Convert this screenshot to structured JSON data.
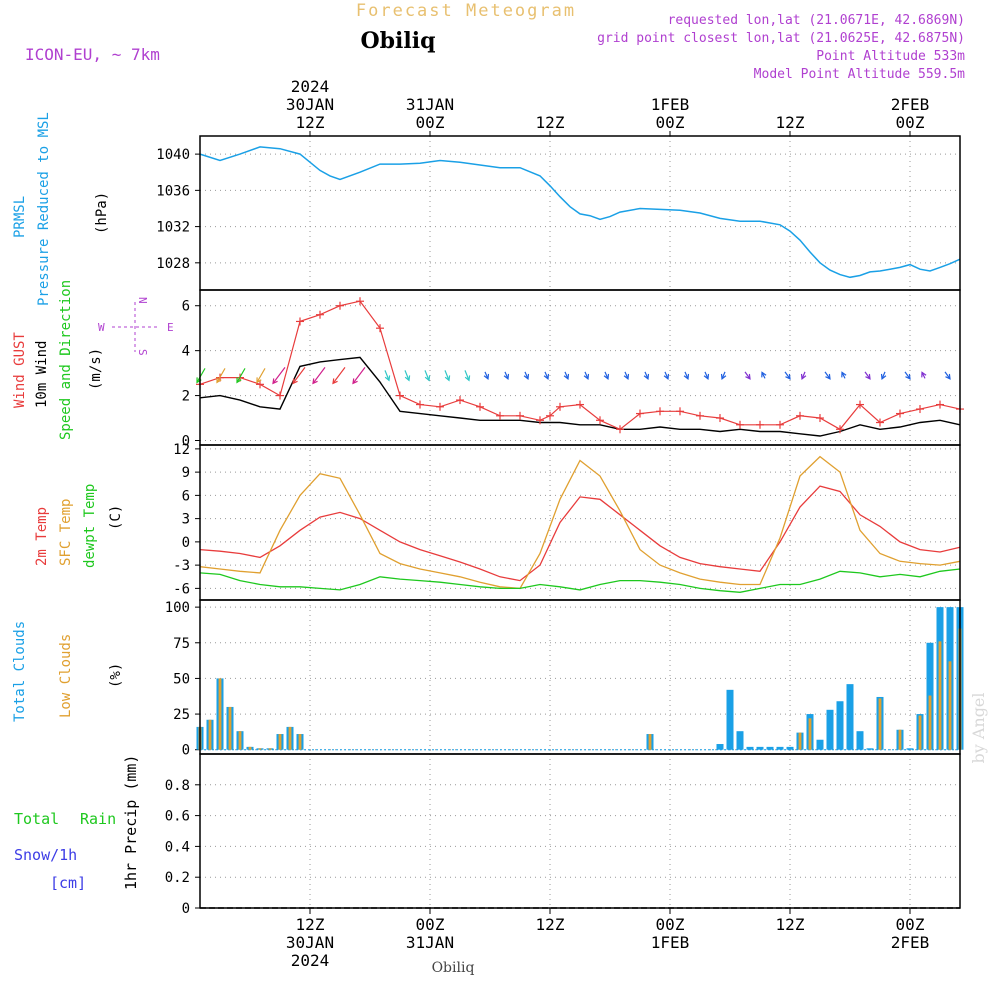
{
  "header": {
    "product_title": "Forecast Meteogram",
    "location": "Obiliq",
    "model": "ICON-EU, ~ 7km",
    "requested": "requested lon,lat (21.0671E, 42.6869N)",
    "grid_point": "grid point closest lon,lat (21.0625E, 42.6875N)",
    "point_altitude": "Point Altitude 533m",
    "model_altitude": "Model Point Altitude 559.5m"
  },
  "colors": {
    "pressure": "#1aa0e6",
    "gust": "#e83c3c",
    "wind": "#000000",
    "direction": "#1ec81e",
    "temp2m": "#e83c3c",
    "sfc": "#e0a030",
    "dewpt": "#1ec81e",
    "total_clouds": "#1aa0e6",
    "low_clouds": "#e0a030",
    "rain": "#1ec81e",
    "snow": "#3c3ce6",
    "header_purple": "#b040d0"
  },
  "time_axis": {
    "top": [
      {
        "x": 12,
        "lines": [
          "2024",
          "30JAN",
          "12Z"
        ]
      },
      {
        "x": 24,
        "lines": [
          "31JAN",
          "00Z"
        ]
      },
      {
        "x": 36,
        "lines": [
          "12Z"
        ]
      },
      {
        "x": 48,
        "lines": [
          "1FEB",
          "00Z"
        ]
      },
      {
        "x": 60,
        "lines": [
          "12Z"
        ]
      },
      {
        "x": 72,
        "lines": [
          "2FEB",
          "00Z"
        ]
      }
    ],
    "bottom": [
      {
        "x": 12,
        "lines": [
          "12Z",
          "30JAN",
          "2024"
        ]
      },
      {
        "x": 24,
        "lines": [
          "00Z",
          "31JAN"
        ]
      },
      {
        "x": 36,
        "lines": [
          "12Z"
        ]
      },
      {
        "x": 48,
        "lines": [
          "00Z",
          "1FEB"
        ]
      },
      {
        "x": 60,
        "lines": [
          "12Z"
        ]
      },
      {
        "x": 72,
        "lines": [
          "00Z",
          "2FEB"
        ]
      }
    ],
    "footer_location": "Obiliq",
    "xlim": [
      1,
      77
    ]
  },
  "panels": {
    "pressure": {
      "labels": [
        "PRMSL",
        "Pressure Reduced to MSL",
        "(hPa)"
      ]
    },
    "wind": {
      "labels": [
        "Wind GUST",
        "10m Wind",
        "Speed and Direction",
        "(m/s)"
      ],
      "compass": {
        "n": "N",
        "s": "S",
        "w": "W",
        "e": "E"
      }
    },
    "temp": {
      "labels": [
        "2m Temp",
        "SFC Temp",
        "dewpt Temp",
        "(C)"
      ]
    },
    "clouds": {
      "labels": [
        "Total Clouds",
        "Low Clouds",
        "(%)"
      ]
    },
    "precip": {
      "labels": [
        "Total",
        "Rain",
        "Snow/1h",
        "[cm]",
        "1hr Precip (mm)"
      ]
    }
  },
  "watermark": "by Angel",
  "chart_data": [
    {
      "type": "line",
      "name": "pressure",
      "ylim": [
        1025,
        1042
      ],
      "yticks": [
        1028,
        1032,
        1036,
        1040
      ],
      "grid": true,
      "x": [
        1,
        3,
        5,
        7,
        9,
        11,
        13,
        14,
        15,
        17,
        19,
        21,
        23,
        25,
        27,
        29,
        31,
        33,
        35,
        36,
        37,
        38,
        39,
        40,
        41,
        42,
        43,
        45,
        47,
        49,
        51,
        53,
        55,
        57,
        59,
        60,
        61,
        62,
        63,
        64,
        65,
        66,
        67,
        68,
        69,
        70,
        71,
        72,
        73,
        74,
        75,
        76,
        77
      ],
      "series": [
        {
          "name": "PRMSL",
          "values": [
            1040.0,
            1039.3,
            1040.0,
            1040.8,
            1040.6,
            1040.0,
            1038.2,
            1037.6,
            1037.2,
            1038.0,
            1038.9,
            1038.9,
            1039.0,
            1039.3,
            1039.1,
            1038.8,
            1038.5,
            1038.5,
            1037.6,
            1036.5,
            1035.3,
            1034.2,
            1033.4,
            1033.2,
            1032.8,
            1033.1,
            1033.6,
            1034.0,
            1033.9,
            1033.8,
            1033.5,
            1032.9,
            1032.6,
            1032.6,
            1032.2,
            1031.5,
            1030.5,
            1029.2,
            1028.0,
            1027.2,
            1026.7,
            1026.4,
            1026.6,
            1027.0,
            1027.1,
            1027.3,
            1027.5,
            1027.8,
            1027.3,
            1027.1,
            1027.5,
            1027.9,
            1028.4
          ]
        }
      ]
    },
    {
      "type": "line",
      "name": "wind",
      "ylim": [
        -0.2,
        6.7
      ],
      "yticks": [
        0,
        2,
        4,
        6
      ],
      "grid": true,
      "x": [
        1,
        3,
        5,
        7,
        9,
        11,
        13,
        15,
        17,
        19,
        21,
        23,
        25,
        27,
        29,
        31,
        33,
        35,
        36,
        37,
        39,
        41,
        43,
        45,
        47,
        49,
        51,
        53,
        55,
        57,
        59,
        61,
        63,
        65,
        67,
        69,
        71,
        73,
        75,
        77
      ],
      "series": [
        {
          "name": "Wind GUST",
          "values": [
            2.5,
            2.8,
            2.8,
            2.5,
            2.0,
            5.3,
            5.6,
            6.0,
            6.2,
            5.0,
            2.0,
            1.6,
            1.5,
            1.8,
            1.5,
            1.1,
            1.1,
            0.9,
            1.1,
            1.5,
            1.6,
            0.9,
            0.5,
            1.2,
            1.3,
            1.3,
            1.1,
            1.0,
            0.7,
            0.7,
            0.7,
            1.1,
            1.0,
            0.5,
            1.6,
            0.8,
            1.2,
            1.4,
            1.6,
            1.4
          ]
        },
        {
          "name": "10m Wind",
          "values": [
            1.9,
            2.0,
            1.8,
            1.5,
            1.4,
            3.3,
            3.5,
            3.6,
            3.7,
            2.6,
            1.3,
            1.2,
            1.1,
            1.0,
            0.9,
            0.9,
            0.9,
            0.8,
            0.8,
            0.8,
            0.7,
            0.7,
            0.5,
            0.5,
            0.6,
            0.5,
            0.5,
            0.4,
            0.5,
            0.4,
            0.4,
            0.3,
            0.2,
            0.4,
            0.7,
            0.5,
            0.6,
            0.8,
            0.9,
            0.7
          ]
        }
      ]
    },
    {
      "type": "line",
      "name": "temperature",
      "ylim": [
        -7.5,
        12.5
      ],
      "yticks": [
        -6,
        -3,
        0,
        3,
        6,
        9,
        12
      ],
      "grid": true,
      "x": [
        1,
        3,
        5,
        7,
        9,
        11,
        13,
        15,
        17,
        19,
        21,
        23,
        25,
        27,
        29,
        31,
        33,
        35,
        37,
        39,
        41,
        43,
        45,
        47,
        49,
        51,
        53,
        55,
        57,
        59,
        61,
        63,
        65,
        67,
        69,
        71,
        73,
        75,
        77
      ],
      "series": [
        {
          "name": "2m Temp",
          "values": [
            -1.0,
            -1.2,
            -1.5,
            -2.0,
            -0.5,
            1.5,
            3.2,
            3.8,
            3.0,
            1.5,
            0.0,
            -1.0,
            -1.8,
            -2.6,
            -3.5,
            -4.5,
            -5.0,
            -3.0,
            2.5,
            5.8,
            5.5,
            3.5,
            1.5,
            -0.5,
            -2.0,
            -2.8,
            -3.2,
            -3.5,
            -3.8,
            0.0,
            4.5,
            7.2,
            6.5,
            3.5,
            2.0,
            0.0,
            -1.0,
            -1.3,
            -0.7
          ]
        },
        {
          "name": "SFC Temp",
          "values": [
            -3.2,
            -3.5,
            -3.8,
            -4.0,
            1.5,
            6.0,
            8.8,
            8.2,
            3.5,
            -1.5,
            -2.8,
            -3.5,
            -4.0,
            -4.5,
            -5.2,
            -5.8,
            -6.0,
            -1.5,
            5.5,
            10.5,
            8.5,
            4.0,
            -1.0,
            -3.0,
            -4.0,
            -4.8,
            -5.2,
            -5.5,
            -5.5,
            0.5,
            8.5,
            11.0,
            9.0,
            1.5,
            -1.5,
            -2.5,
            -2.8,
            -3.0,
            -2.5
          ]
        },
        {
          "name": "dewpt Temp",
          "values": [
            -4.0,
            -4.2,
            -5.0,
            -5.5,
            -5.8,
            -5.8,
            -6.0,
            -6.2,
            -5.5,
            -4.5,
            -4.8,
            -5.0,
            -5.2,
            -5.5,
            -5.8,
            -6.0,
            -6.0,
            -5.5,
            -5.8,
            -6.2,
            -5.5,
            -5.0,
            -5.0,
            -5.2,
            -5.5,
            -6.0,
            -6.3,
            -6.5,
            -6.0,
            -5.5,
            -5.5,
            -4.8,
            -3.8,
            -4.0,
            -4.5,
            -4.2,
            -4.5,
            -3.8,
            -3.5
          ]
        }
      ]
    },
    {
      "type": "bar",
      "name": "clouds",
      "ylim": [
        -3,
        105
      ],
      "yticks": [
        0,
        25,
        50,
        75,
        100
      ],
      "grid": true,
      "x": [
        1,
        2,
        3,
        4,
        5,
        6,
        7,
        8,
        9,
        10,
        11,
        46,
        53,
        54,
        55,
        56,
        57,
        58,
        59,
        60,
        61,
        62,
        63,
        64,
        65,
        66,
        67,
        68,
        69,
        71,
        72,
        73,
        74,
        75,
        76,
        77
      ],
      "series": [
        {
          "name": "Total Clouds",
          "values": [
            16,
            21,
            50,
            30,
            13,
            2,
            1,
            1,
            11,
            16,
            11,
            11,
            4,
            42,
            13,
            2,
            2,
            2,
            2,
            2,
            12,
            25,
            7,
            28,
            34,
            46,
            13,
            1,
            37,
            14,
            1,
            25,
            75,
            100,
            100,
            100
          ]
        },
        {
          "name": "Low Clouds",
          "values": [
            16,
            21,
            50,
            30,
            13,
            2,
            1,
            1,
            11,
            16,
            11,
            11,
            0,
            0,
            0,
            0,
            0,
            0,
            0,
            0,
            12,
            22,
            0,
            0,
            0,
            0,
            0,
            0,
            36,
            14,
            0,
            24,
            38,
            76,
            62,
            85
          ]
        }
      ]
    },
    {
      "type": "line",
      "name": "precipitation",
      "ylim": [
        0,
        1.0
      ],
      "yticks": [
        0,
        0.2,
        0.4,
        0.6,
        0.8
      ],
      "grid": true,
      "series": [
        {
          "name": "1hr Precip (mm)",
          "values": [
            0
          ]
        }
      ]
    }
  ]
}
